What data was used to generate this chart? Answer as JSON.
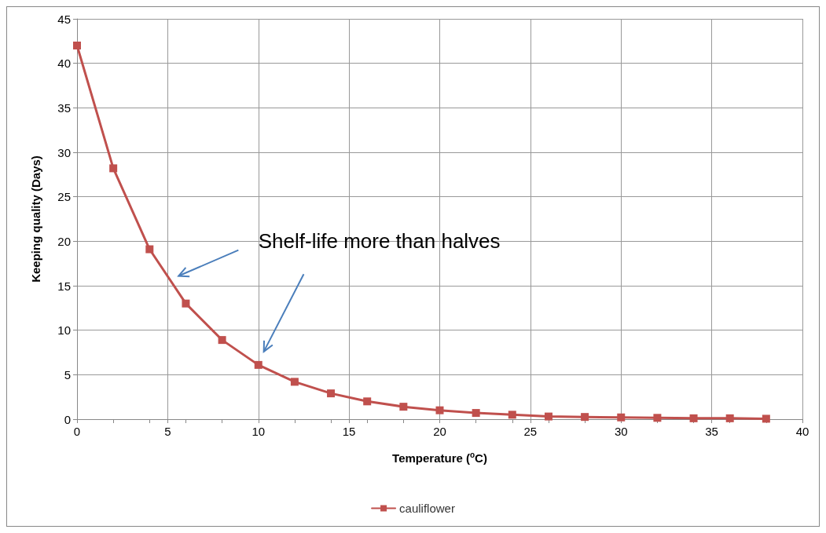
{
  "chart_data": {
    "type": "line",
    "xlabel": "Temperature ($^{o}$C)",
    "ylabel": "Keeping quality (Days)",
    "x": [
      0,
      2,
      4,
      6,
      8,
      10,
      12,
      14,
      16,
      18,
      20,
      22,
      24,
      26,
      28,
      30,
      32,
      34,
      36,
      38
    ],
    "series": [
      {
        "name": "cauliflower",
        "color": "#c0504d",
        "values": [
          42,
          28.2,
          19.1,
          13,
          8.9,
          6.1,
          4.2,
          2.9,
          2.0,
          1.4,
          1.0,
          0.7,
          0.5,
          0.3,
          0.25,
          0.2,
          0.15,
          0.1,
          0.1,
          0.05
        ]
      }
    ],
    "xlim": [
      0,
      40
    ],
    "xticks": [
      0,
      5,
      10,
      15,
      20,
      25,
      30,
      35,
      40
    ],
    "ylim": [
      0,
      45
    ],
    "yticks": [
      0,
      5,
      10,
      15,
      20,
      25,
      30,
      35,
      40,
      45
    ],
    "annotations": [
      "Shelf-life more than halves"
    ],
    "grid": true,
    "legend": "bottom",
    "marker": "square",
    "line_style": "solid"
  }
}
